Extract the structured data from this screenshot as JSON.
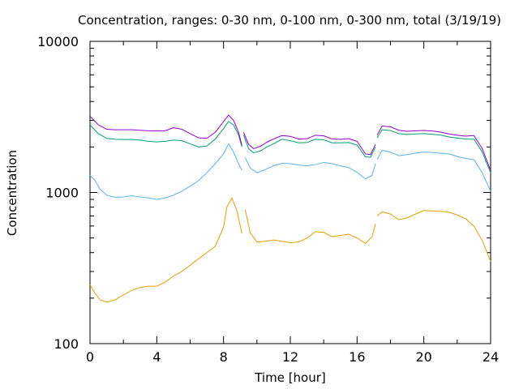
{
  "chart_data": {
    "type": "line",
    "title": "Concentration, ranges: 0-30 nm, 0-100 nm, 0-300 nm, total (3/19/19)",
    "xlabel": "Time [hour]",
    "ylabel": "Concentration",
    "xlim": [
      0,
      24
    ],
    "ylim": [
      100,
      10000
    ],
    "yscale": "log",
    "grid": false,
    "legend": "none",
    "x_ticks": [
      0,
      4,
      8,
      12,
      16,
      20,
      24
    ],
    "x_tick_labels": [
      "0",
      "4",
      "8",
      "12",
      "16",
      "20",
      "24"
    ],
    "y_ticks": [
      100,
      1000,
      10000
    ],
    "y_tick_labels": [
      "100",
      "1000",
      "10000"
    ],
    "series": [
      {
        "color": "#e69f00",
        "segments": [
          {
            "x": [
              0,
              0.3,
              0.6,
              1,
              1.5,
              2,
              2.5,
              3,
              3.5,
              4,
              4.5,
              5,
              5.5,
              6,
              6.5,
              7,
              7.5,
              8,
              8.2,
              8.5,
              8.8,
              9.1
            ],
            "y": [
              245,
              215,
              195,
              188,
              195,
              210,
              225,
              235,
              240,
              240,
              255,
              280,
              300,
              330,
              365,
              400,
              440,
              590,
              800,
              920,
              760,
              535
            ]
          },
          {
            "x": [
              9.3,
              9.6,
              10,
              10.5,
              11,
              11.5,
              12,
              12.5,
              13,
              13.5,
              14,
              14.5,
              15,
              15.5,
              16,
              16.5,
              16.9,
              17.1
            ],
            "y": [
              770,
              540,
              470,
              475,
              485,
              475,
              465,
              470,
              500,
              550,
              545,
              510,
              520,
              530,
              500,
              460,
              510,
              620
            ]
          },
          {
            "x": [
              17.2,
              17.5,
              18,
              18.5,
              19,
              19.5,
              20,
              20.5,
              21,
              21.5,
              22,
              22.5,
              23,
              23.5,
              24
            ],
            "y": [
              700,
              745,
              720,
              660,
              680,
              720,
              760,
              755,
              750,
              740,
              710,
              670,
              600,
              480,
              350
            ]
          }
        ]
      },
      {
        "color": "#56b4e9",
        "segments": [
          {
            "x": [
              0,
              0.3,
              0.6,
              1,
              1.5,
              2,
              2.5,
              3,
              3.5,
              4,
              4.5,
              5,
              5.5,
              6,
              6.5,
              7,
              7.5,
              8,
              8.3,
              8.6,
              8.9,
              9.1
            ],
            "y": [
              1300,
              1200,
              1050,
              960,
              930,
              935,
              950,
              935,
              920,
              900,
              920,
              960,
              1020,
              1100,
              1200,
              1350,
              1550,
              1800,
              2100,
              1850,
              1550,
              1400
            ]
          },
          {
            "x": [
              9.3,
              9.6,
              10,
              10.5,
              11,
              11.5,
              12,
              12.5,
              13,
              13.5,
              14,
              14.5,
              15,
              15.5,
              16,
              16.5,
              16.9,
              17.1
            ],
            "y": [
              1700,
              1450,
              1350,
              1420,
              1500,
              1560,
              1550,
              1520,
              1500,
              1530,
              1580,
              1550,
              1500,
              1460,
              1360,
              1230,
              1300,
              1550
            ]
          },
          {
            "x": [
              17.2,
              17.5,
              18,
              18.5,
              19,
              19.5,
              20,
              20.5,
              21,
              21.5,
              22,
              22.5,
              23,
              23.5,
              24
            ],
            "y": [
              1650,
              1900,
              1850,
              1750,
              1780,
              1820,
              1850,
              1840,
              1820,
              1800,
              1730,
              1680,
              1650,
              1350,
              1020
            ]
          }
        ]
      },
      {
        "color": "#009e73",
        "segments": [
          {
            "x": [
              0,
              0.5,
              1,
              1.5,
              2,
              2.5,
              3,
              3.5,
              4,
              4.5,
              5,
              5.5,
              6,
              6.5,
              7,
              7.5,
              8,
              8.3,
              8.6,
              8.9,
              9.1
            ],
            "y": [
              2800,
              2450,
              2280,
              2250,
              2240,
              2240,
              2220,
              2180,
              2160,
              2180,
              2220,
              2200,
              2100,
              2000,
              2030,
              2250,
              2650,
              2950,
              2800,
              2400,
              2000
            ]
          },
          {
            "x": [
              9.2,
              9.5,
              9.8,
              10.2,
              10.6,
              11,
              11.5,
              12,
              12.5,
              13,
              13.5,
              14,
              14.5,
              15,
              15.5,
              16,
              16.5,
              16.8,
              17.1
            ],
            "y": [
              2400,
              1950,
              1830,
              1880,
              2000,
              2100,
              2250,
              2200,
              2130,
              2140,
              2250,
              2230,
              2130,
              2130,
              2140,
              2060,
              1720,
              1710,
              2000
            ]
          },
          {
            "x": [
              17.2,
              17.5,
              18,
              18.5,
              19,
              19.5,
              20,
              20.5,
              21,
              21.5,
              22,
              22.5,
              23,
              23.5,
              24
            ],
            "y": [
              2300,
              2600,
              2570,
              2450,
              2420,
              2440,
              2450,
              2430,
              2400,
              2330,
              2290,
              2260,
              2250,
              1850,
              1350
            ]
          }
        ]
      },
      {
        "color": "#9400d3",
        "segments": [
          {
            "x": [
              0,
              0.5,
              1,
              1.5,
              2,
              2.5,
              3,
              3.5,
              4,
              4.5,
              5,
              5.5,
              6,
              6.5,
              7,
              7.5,
              8,
              8.3,
              8.6,
              8.9,
              9.1
            ],
            "y": [
              3200,
              2800,
              2620,
              2600,
              2600,
              2600,
              2580,
              2560,
              2550,
              2560,
              2680,
              2620,
              2450,
              2300,
              2280,
              2500,
              2950,
              3250,
              3000,
              2500,
              2050
            ]
          },
          {
            "x": [
              9.2,
              9.5,
              9.8,
              10.2,
              10.6,
              11,
              11.5,
              12,
              12.5,
              13,
              13.5,
              14,
              14.5,
              15,
              15.5,
              16,
              16.5,
              16.8,
              17.1
            ],
            "y": [
              2500,
              2080,
              1950,
              2020,
              2150,
              2260,
              2380,
              2350,
              2260,
              2270,
              2390,
              2370,
              2260,
              2250,
              2270,
              2180,
              1800,
              1780,
              2080
            ]
          },
          {
            "x": [
              17.2,
              17.5,
              18,
              18.5,
              19,
              19.5,
              20,
              20.5,
              21,
              21.5,
              22,
              22.5,
              23,
              23.5,
              24
            ],
            "y": [
              2400,
              2750,
              2720,
              2580,
              2540,
              2560,
              2570,
              2550,
              2510,
              2440,
              2390,
              2360,
              2380,
              1950,
              1400
            ]
          }
        ]
      }
    ]
  }
}
